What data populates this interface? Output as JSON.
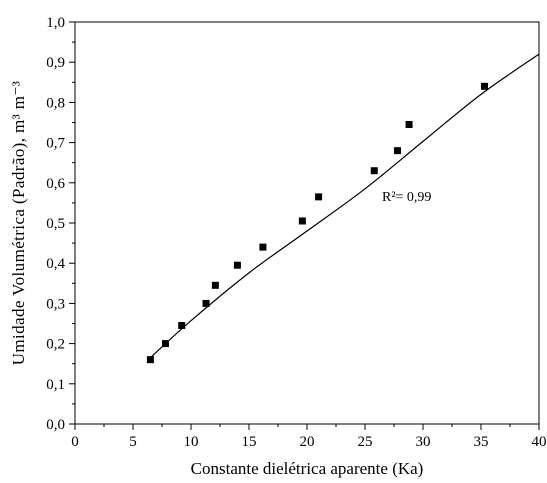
{
  "chart_data": {
    "type": "scatter",
    "xlabel": "Constante dielétrica aparente (Ka)",
    "ylabel": "Umidade Volumétrica (Padrão), m³ m⁻³",
    "xlim": [
      0,
      40
    ],
    "ylim": [
      0.0,
      1.0
    ],
    "x_ticks": [
      "0",
      "5",
      "10",
      "15",
      "20",
      "25",
      "30",
      "35",
      "40"
    ],
    "y_ticks": [
      "0,0",
      "0,1",
      "0,2",
      "0,3",
      "0,4",
      "0,5",
      "0,6",
      "0,7",
      "0,8",
      "0,9",
      "1,0"
    ],
    "grid": false,
    "annotation": "R²= 0,99",
    "series": [
      {
        "marker": "square",
        "color": "#000000",
        "points": [
          {
            "x": 6.5,
            "y": 0.16
          },
          {
            "x": 7.8,
            "y": 0.2
          },
          {
            "x": 9.2,
            "y": 0.245
          },
          {
            "x": 11.3,
            "y": 0.3
          },
          {
            "x": 12.1,
            "y": 0.345
          },
          {
            "x": 14.0,
            "y": 0.395
          },
          {
            "x": 16.2,
            "y": 0.44
          },
          {
            "x": 19.6,
            "y": 0.505
          },
          {
            "x": 21.0,
            "y": 0.565
          },
          {
            "x": 25.8,
            "y": 0.63
          },
          {
            "x": 27.8,
            "y": 0.68
          },
          {
            "x": 28.8,
            "y": 0.745
          },
          {
            "x": 35.3,
            "y": 0.84
          }
        ]
      },
      {
        "type": "line",
        "color": "#000000",
        "x_range": [
          6.5,
          40
        ],
        "points": [
          {
            "x": 6.5,
            "y": 0.165
          },
          {
            "x": 10,
            "y": 0.257
          },
          {
            "x": 15,
            "y": 0.376
          },
          {
            "x": 20,
            "y": 0.48
          },
          {
            "x": 25,
            "y": 0.585
          },
          {
            "x": 30,
            "y": 0.703
          },
          {
            "x": 35,
            "y": 0.82
          },
          {
            "x": 40,
            "y": 0.92
          }
        ]
      }
    ]
  }
}
